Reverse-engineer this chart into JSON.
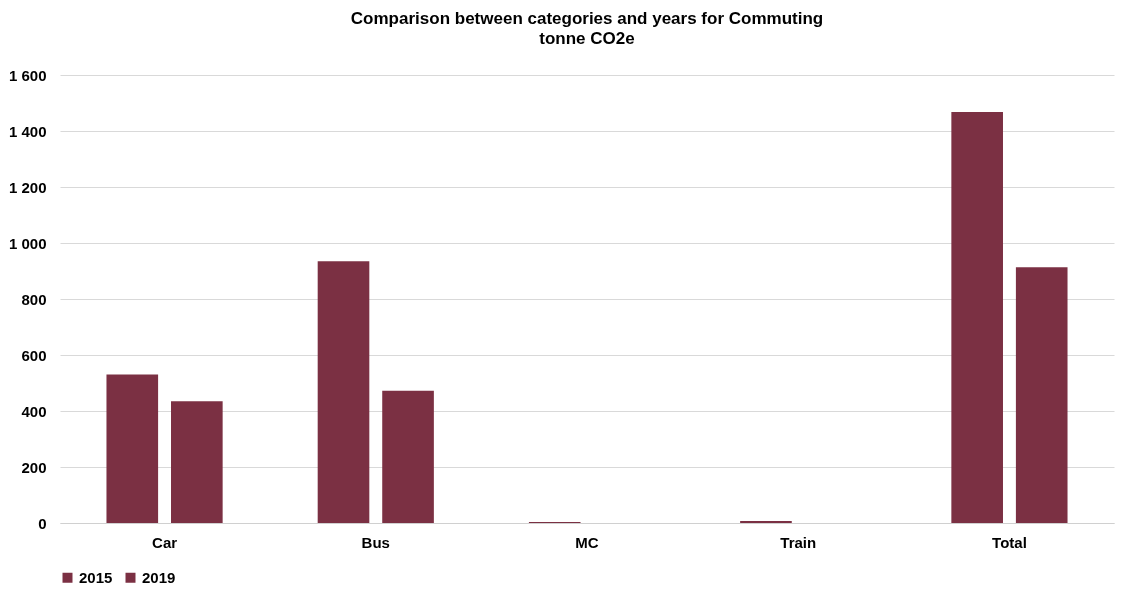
{
  "chart_data": {
    "type": "bar",
    "title": "Comparison between categories and years for Commuting",
    "subtitle": "tonne CO2e",
    "categories": [
      "Car",
      "Bus",
      "MC",
      "Train",
      "Total"
    ],
    "series": [
      {
        "name": "2015",
        "color": "#7b3043",
        "values": [
          530,
          935,
          4,
          7,
          1468
        ]
      },
      {
        "name": "2019",
        "color": "#7b3043",
        "values": [
          435,
          472,
          0,
          0,
          913
        ]
      }
    ],
    "ylim": [
      0,
      1600
    ],
    "yticks": [
      0,
      200,
      400,
      600,
      800,
      {
        "value": 1000,
        "label": "1 000"
      },
      {
        "value": 1200,
        "label": "1 200"
      },
      {
        "value": 1400,
        "label": "1 400"
      },
      {
        "value": 1600,
        "label": "1 600"
      }
    ],
    "grid": "y",
    "legend": "bottom"
  }
}
